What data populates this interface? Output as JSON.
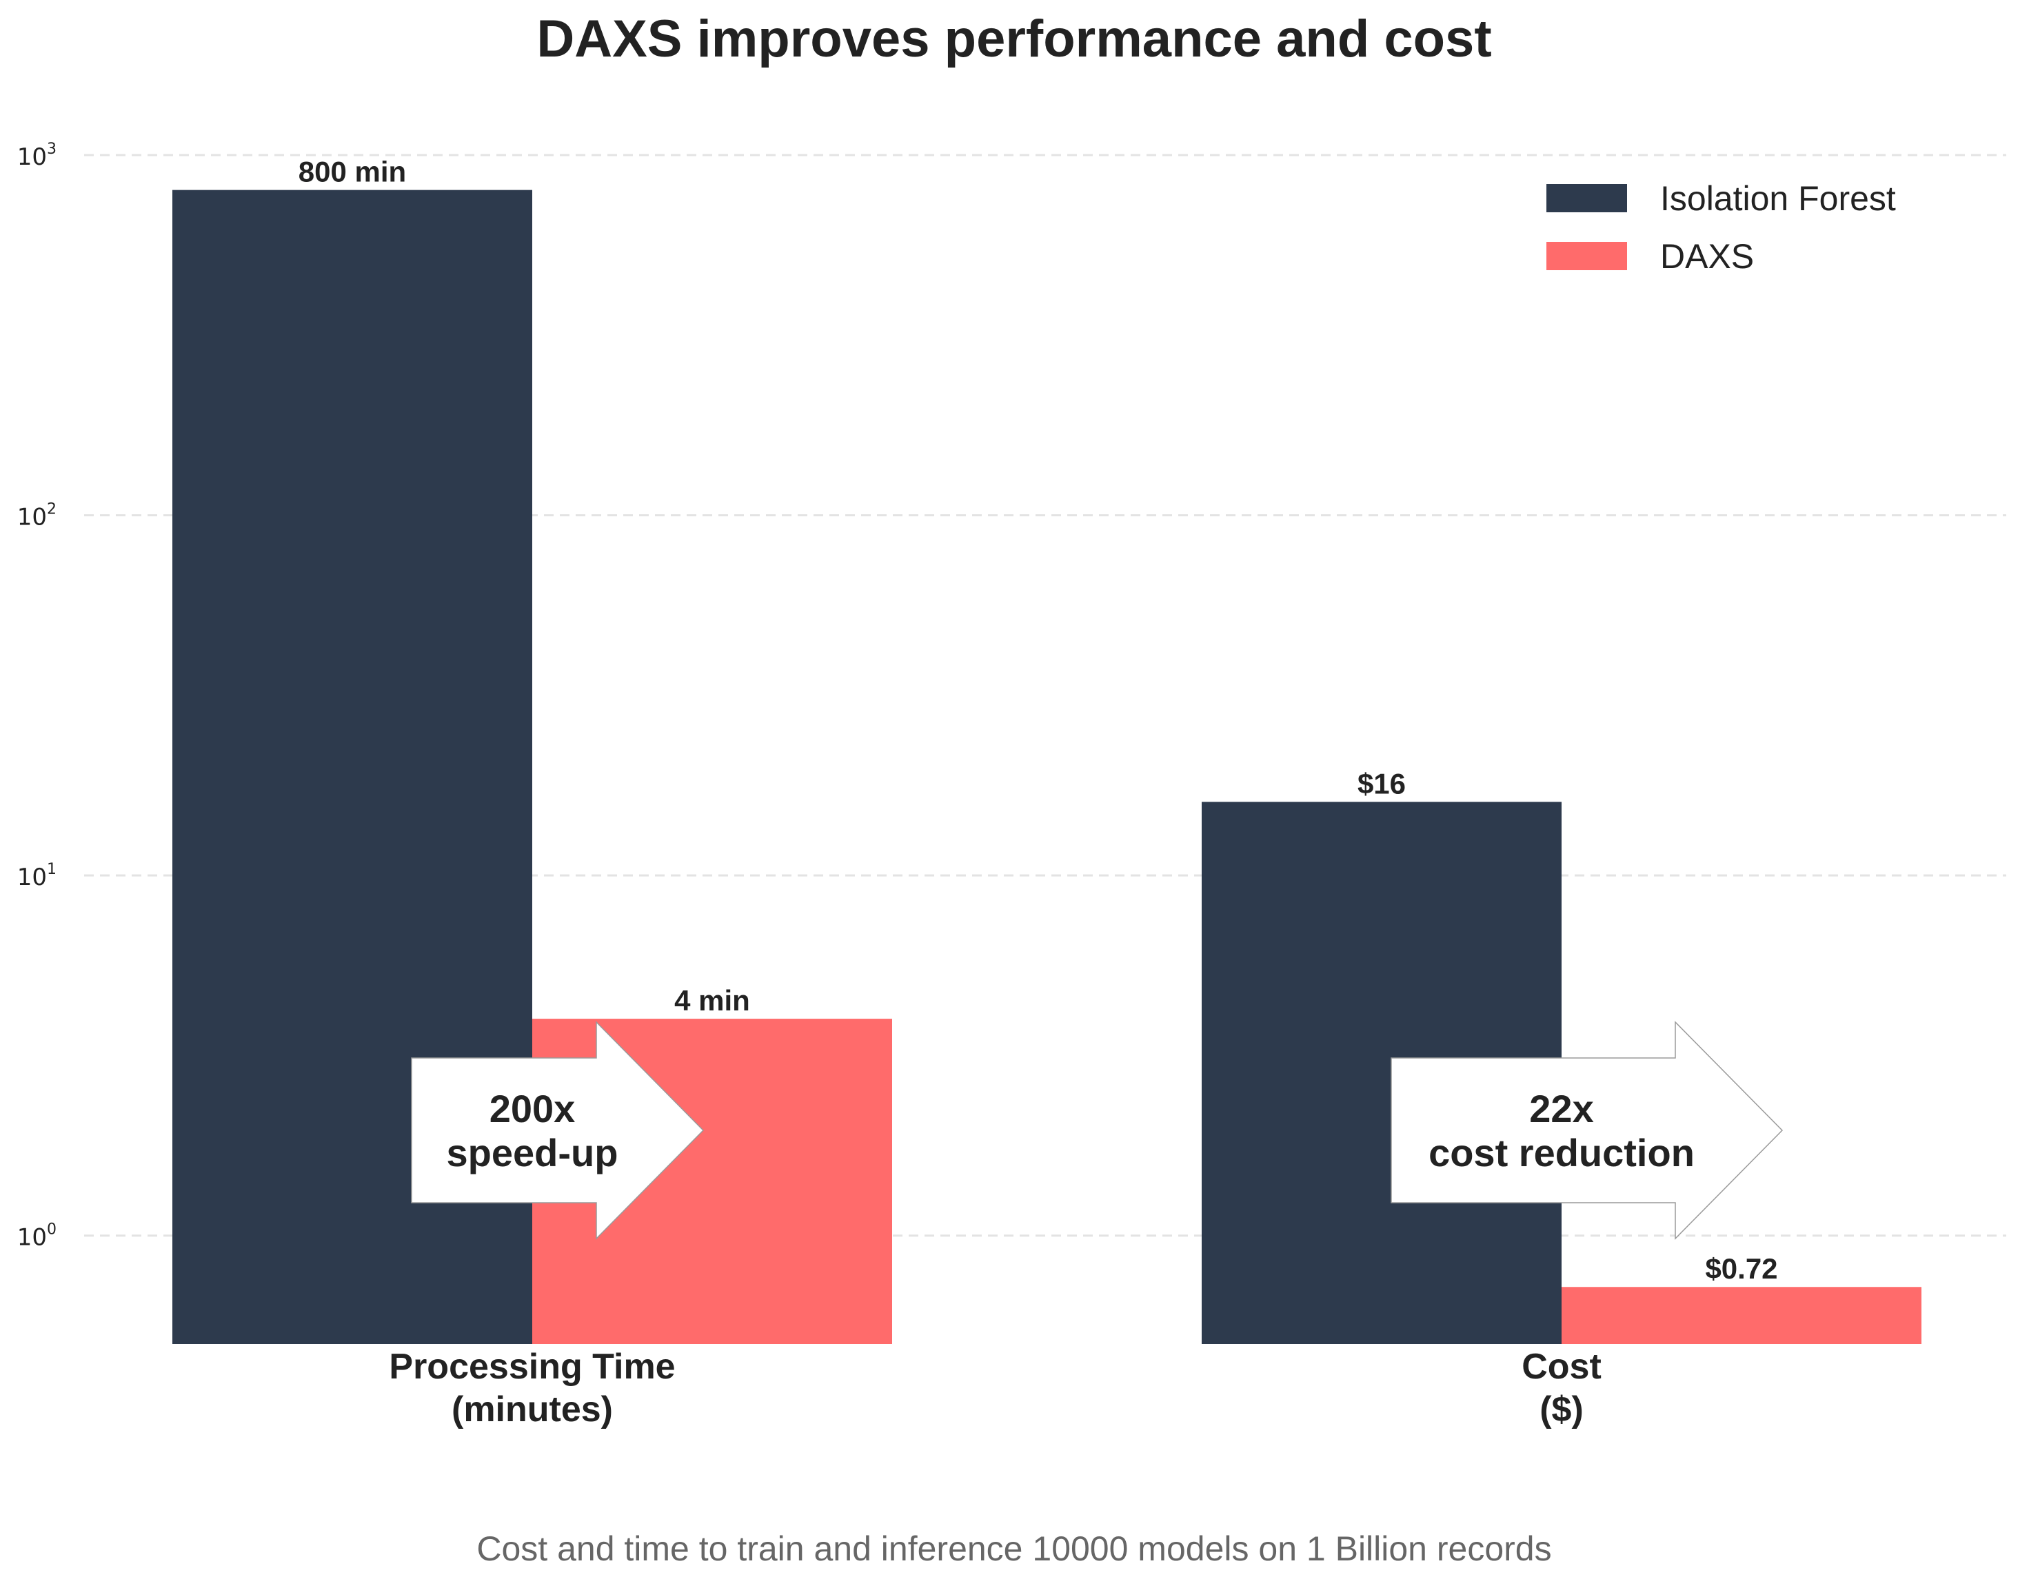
{
  "chart_data": {
    "type": "bar",
    "title": "DAXS improves performance and cost",
    "footnote": "Cost and time to train and inference 10000 models on 1 Billion records",
    "yscale": "log",
    "ylim": [
      0.5,
      1000
    ],
    "yticks": [
      {
        "base": "10",
        "exp": "0",
        "value": 1
      },
      {
        "base": "10",
        "exp": "1",
        "value": 10
      },
      {
        "base": "10",
        "exp": "2",
        "value": 100
      },
      {
        "base": "10",
        "exp": "3",
        "value": 1000
      }
    ],
    "grid": "horizontal dashed",
    "legend_position": "top-right",
    "categories": [
      {
        "line1": "Processing Time",
        "line2": "(minutes)"
      },
      {
        "line1": "Cost",
        "line2": "($)"
      }
    ],
    "series": [
      {
        "name": "Isolation Forest",
        "color": "#2d3a4d",
        "values": [
          800,
          16
        ],
        "labels": [
          "800 min",
          "$16"
        ]
      },
      {
        "name": "DAXS",
        "color": "#ff6b6b",
        "values": [
          4,
          0.72
        ],
        "labels": [
          "4 min",
          "$0.72"
        ]
      }
    ],
    "annotations": [
      {
        "line1": "200x",
        "line2": "speed-up"
      },
      {
        "line1": "22x",
        "line2": "cost reduction"
      }
    ]
  }
}
